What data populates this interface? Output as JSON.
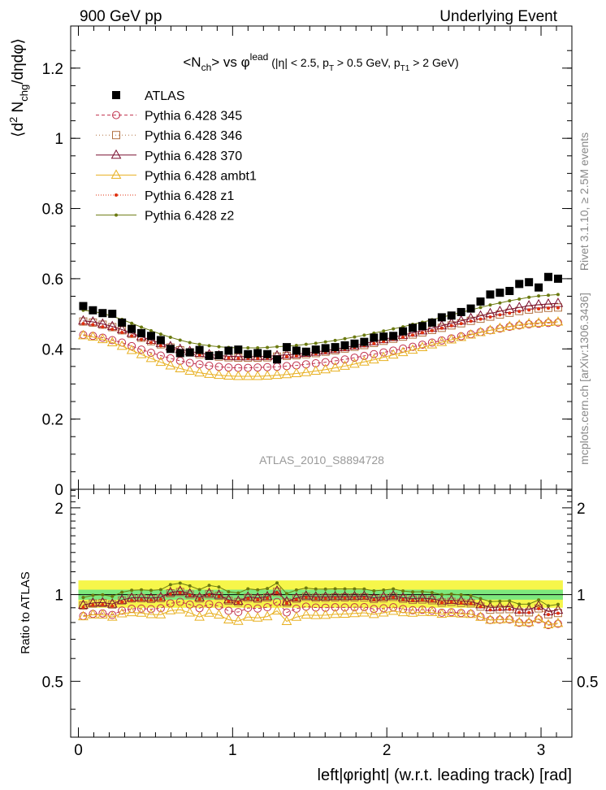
{
  "header": {
    "left_label": "900 GeV pp",
    "right_label": "Underlying Event"
  },
  "side_labels": {
    "rivet": "Rivet 3.1.10, ≥ 2.5M events",
    "mcplots": "mcplots.cern.ch [arXiv:1306.3436]"
  },
  "analysis_id": "ATLAS_2010_S8894728",
  "chart_data": [
    {
      "type": "scatter",
      "title": "<Nch> vs φlead (|η| < 2.5, pT > 0.5 GeV, pT1 > 2 GeV)",
      "ylabel": "⟨d² Nchg/dηdφ⟩",
      "xlim": [
        -0.05,
        3.2
      ],
      "ylim": [
        0,
        1.32
      ],
      "yticks": [
        0,
        0.2,
        0.4,
        0.6,
        0.8,
        1,
        1.2
      ],
      "ytick_labels": [
        "0",
        "0.2",
        "0.4",
        "0.6",
        "0.8",
        "1",
        "1.2"
      ],
      "legend_position": "top-left",
      "x": [
        0.0314,
        0.0942,
        0.1571,
        0.2199,
        0.2827,
        0.3456,
        0.4084,
        0.4712,
        0.5341,
        0.5969,
        0.6597,
        0.7226,
        0.7854,
        0.8482,
        0.9111,
        0.9739,
        1.0367,
        1.0996,
        1.1624,
        1.2252,
        1.2881,
        1.3509,
        1.4137,
        1.4765,
        1.5394,
        1.6022,
        1.665,
        1.7279,
        1.7907,
        1.8535,
        1.9164,
        1.9792,
        2.042,
        2.1049,
        2.1677,
        2.2305,
        2.2934,
        2.3562,
        2.419,
        2.4819,
        2.5447,
        2.6075,
        2.6704,
        2.7332,
        2.796,
        2.8588,
        2.9217,
        2.9845,
        3.0473,
        3.1102
      ],
      "series": [
        {
          "name": "ATLAS",
          "color": "#000000",
          "marker": "filled-square",
          "dash": "none",
          "values": [
            0.522,
            0.51,
            0.502,
            0.5,
            0.475,
            0.457,
            0.445,
            0.437,
            0.425,
            0.4,
            0.388,
            0.39,
            0.397,
            0.38,
            0.382,
            0.395,
            0.398,
            0.385,
            0.388,
            0.385,
            0.37,
            0.405,
            0.395,
            0.392,
            0.398,
            0.402,
            0.405,
            0.41,
            0.415,
            0.42,
            0.432,
            0.435,
            0.437,
            0.45,
            0.46,
            0.465,
            0.475,
            0.49,
            0.495,
            0.505,
            0.515,
            0.535,
            0.555,
            0.56,
            0.565,
            0.585,
            0.59,
            0.575,
            0.605,
            0.6
          ]
        },
        {
          "name": "Pythia 6.428 345",
          "color": "#c0304c",
          "marker": "open-circle",
          "dash": "4,3",
          "values": [
            0.44,
            0.437,
            0.432,
            0.425,
            0.418,
            0.408,
            0.398,
            0.389,
            0.381,
            0.373,
            0.366,
            0.36,
            0.356,
            0.352,
            0.349,
            0.347,
            0.346,
            0.346,
            0.347,
            0.348,
            0.349,
            0.351,
            0.353,
            0.356,
            0.359,
            0.362,
            0.366,
            0.37,
            0.375,
            0.38,
            0.385,
            0.39,
            0.395,
            0.401,
            0.406,
            0.412,
            0.418,
            0.424,
            0.43,
            0.436,
            0.442,
            0.448,
            0.453,
            0.458,
            0.463,
            0.467,
            0.47,
            0.472,
            0.474,
            0.475
          ]
        },
        {
          "name": "Pythia 6.428 346",
          "color": "#b07040",
          "marker": "open-square",
          "dash": "1,3",
          "values": [
            0.478,
            0.475,
            0.469,
            0.462,
            0.453,
            0.443,
            0.432,
            0.422,
            0.413,
            0.404,
            0.396,
            0.39,
            0.385,
            0.381,
            0.378,
            0.376,
            0.375,
            0.375,
            0.375,
            0.376,
            0.378,
            0.38,
            0.382,
            0.385,
            0.388,
            0.392,
            0.396,
            0.401,
            0.406,
            0.411,
            0.417,
            0.423,
            0.429,
            0.435,
            0.441,
            0.447,
            0.454,
            0.46,
            0.467,
            0.473,
            0.48,
            0.486,
            0.492,
            0.498,
            0.503,
            0.508,
            0.512,
            0.515,
            0.517,
            0.518
          ]
        },
        {
          "name": "Pythia 6.428 370",
          "color": "#7a1030",
          "marker": "open-triangle",
          "dash": "none",
          "values": [
            0.48,
            0.477,
            0.471,
            0.464,
            0.455,
            0.445,
            0.435,
            0.425,
            0.416,
            0.407,
            0.399,
            0.393,
            0.388,
            0.384,
            0.381,
            0.379,
            0.378,
            0.378,
            0.378,
            0.379,
            0.381,
            0.383,
            0.385,
            0.388,
            0.391,
            0.395,
            0.399,
            0.404,
            0.409,
            0.415,
            0.421,
            0.427,
            0.433,
            0.439,
            0.446,
            0.452,
            0.459,
            0.466,
            0.473,
            0.48,
            0.487,
            0.494,
            0.501,
            0.507,
            0.513,
            0.518,
            0.523,
            0.526,
            0.528,
            0.53
          ]
        },
        {
          "name": "Pythia 6.428 ambt1",
          "color": "#e8b020",
          "marker": "open-triangle",
          "dash": "none",
          "values": [
            0.438,
            0.434,
            0.427,
            0.418,
            0.408,
            0.396,
            0.384,
            0.373,
            0.362,
            0.352,
            0.344,
            0.337,
            0.332,
            0.328,
            0.325,
            0.323,
            0.322,
            0.322,
            0.322,
            0.323,
            0.325,
            0.327,
            0.33,
            0.333,
            0.337,
            0.341,
            0.346,
            0.351,
            0.357,
            0.363,
            0.369,
            0.376,
            0.383,
            0.39,
            0.397,
            0.404,
            0.412,
            0.419,
            0.426,
            0.433,
            0.44,
            0.447,
            0.453,
            0.459,
            0.464,
            0.468,
            0.472,
            0.474,
            0.476,
            0.477
          ]
        },
        {
          "name": "Pythia 6.428 z1",
          "color": "#e03010",
          "marker": "small-dot",
          "dash": "1,2",
          "values": [
            0.472,
            0.469,
            0.463,
            0.456,
            0.447,
            0.437,
            0.427,
            0.418,
            0.409,
            0.401,
            0.394,
            0.388,
            0.383,
            0.379,
            0.376,
            0.374,
            0.373,
            0.373,
            0.373,
            0.374,
            0.376,
            0.378,
            0.38,
            0.383,
            0.386,
            0.39,
            0.394,
            0.399,
            0.404,
            0.409,
            0.415,
            0.421,
            0.427,
            0.433,
            0.439,
            0.446,
            0.452,
            0.459,
            0.466,
            0.472,
            0.479,
            0.485,
            0.491,
            0.497,
            0.502,
            0.507,
            0.511,
            0.514,
            0.516,
            0.517
          ]
        },
        {
          "name": "Pythia 6.428 z2",
          "color": "#6b7a10",
          "marker": "small-dot",
          "dash": "none",
          "values": [
            0.51,
            0.507,
            0.501,
            0.493,
            0.484,
            0.473,
            0.462,
            0.452,
            0.442,
            0.433,
            0.425,
            0.418,
            0.413,
            0.409,
            0.406,
            0.404,
            0.403,
            0.403,
            0.403,
            0.404,
            0.406,
            0.408,
            0.41,
            0.413,
            0.416,
            0.42,
            0.424,
            0.429,
            0.434,
            0.439,
            0.445,
            0.451,
            0.457,
            0.463,
            0.47,
            0.476,
            0.483,
            0.49,
            0.497,
            0.504,
            0.511,
            0.518,
            0.525,
            0.531,
            0.537,
            0.542,
            0.547,
            0.551,
            0.553,
            0.555
          ]
        }
      ]
    },
    {
      "type": "scatter",
      "ylabel": "Ratio to ATLAS",
      "xlabel": "left|φright| (w.r.t. leading track) [rad]",
      "xlim": [
        -0.05,
        3.2
      ],
      "ylim": [
        0.32,
        2.32
      ],
      "yticks": [
        0.5,
        1,
        2
      ],
      "ytick_labels": [
        "0.5",
        "1",
        "2"
      ],
      "xticks": [
        0,
        1,
        2,
        3
      ],
      "xtick_labels": [
        "0",
        "1",
        "2",
        "3"
      ],
      "bands": {
        "inner": {
          "lo": 0.96,
          "hi": 1.04,
          "color": "#7de87d"
        },
        "outer": {
          "lo": 0.9,
          "hi": 1.12,
          "color": "#f6f64a"
        }
      }
    }
  ]
}
